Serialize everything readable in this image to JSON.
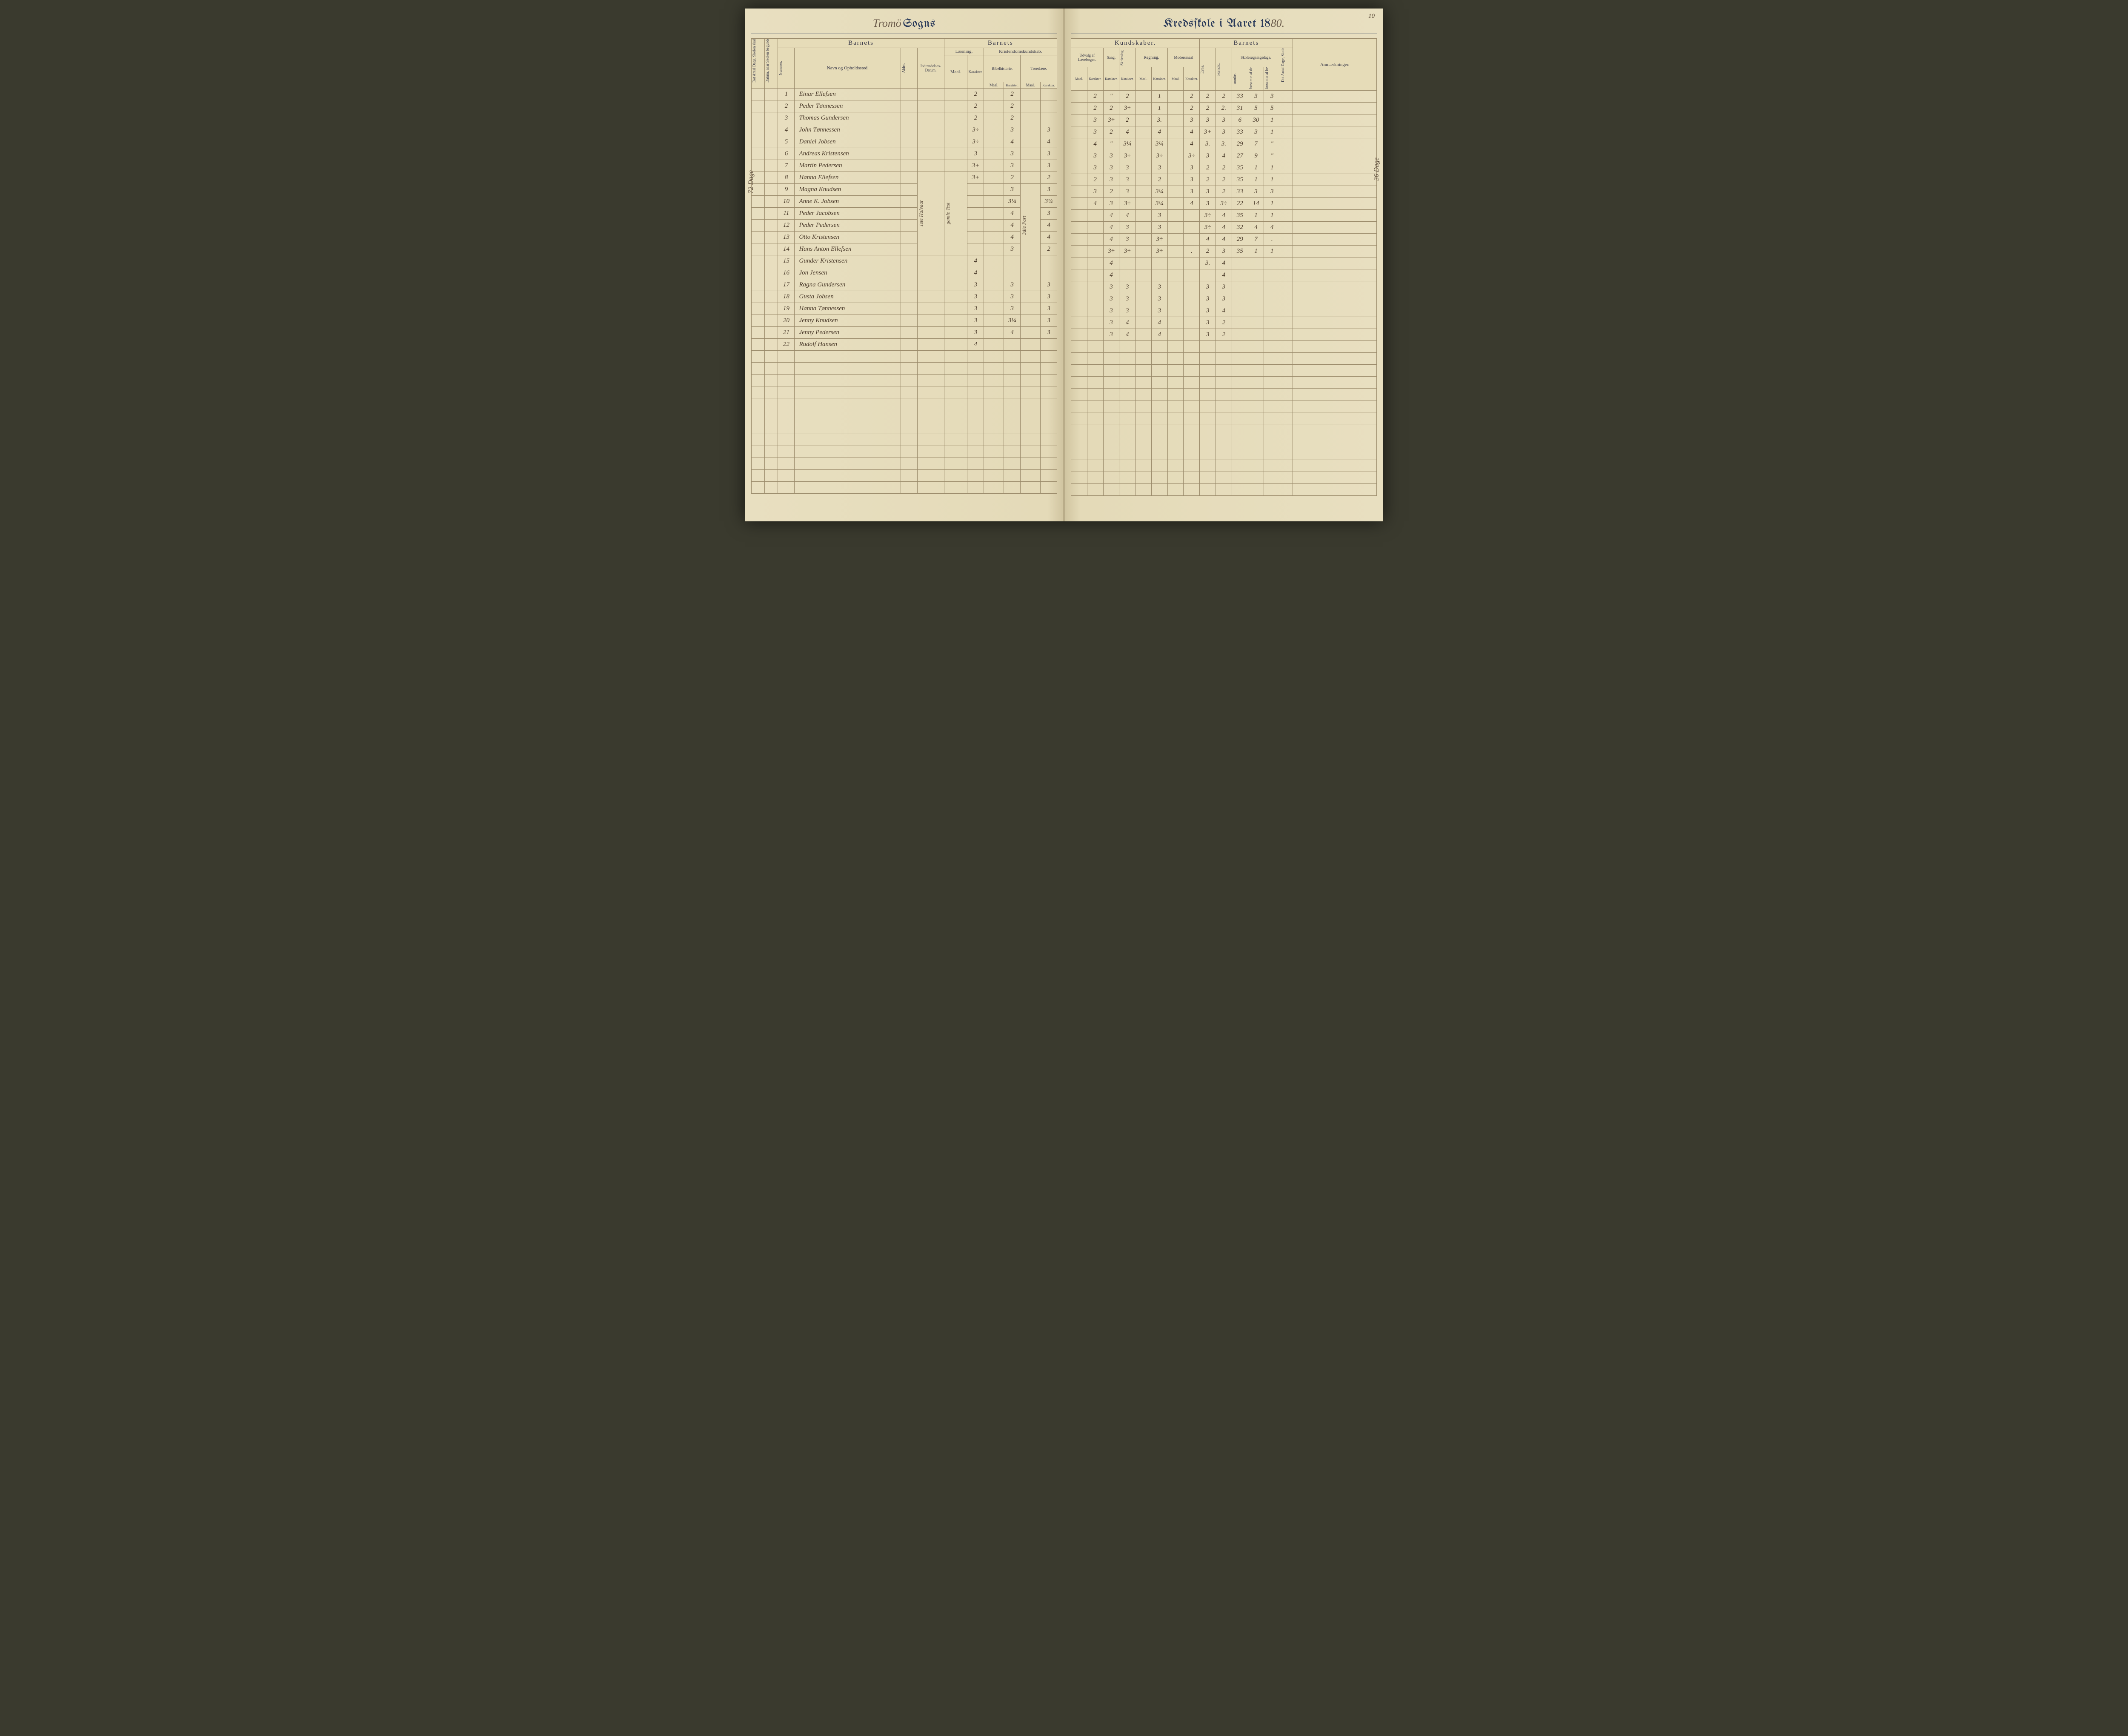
{
  "pageNumber": "10",
  "title": {
    "scriptLeft": "Tromö",
    "printLeft": "Sogns",
    "printRight": "Kredsſkole i Aaret 18",
    "scriptYear": "80."
  },
  "marginNoteLeft": "72 Dage",
  "marginNoteRight": "36 Dage",
  "columnNotes": {
    "indtraedelse": "1ste Halvaar",
    "laesningMaal": "gamle Test",
    "bibelMaal": "3die Part"
  },
  "headersLeft": {
    "rot1": "Det Antal Dage, Skolen skal holdes i Kredsen.",
    "rot2": "Datum, naar Skolen begynder og slutter hver Omgang.",
    "barnets": "Barnets",
    "barnets2": "Barnets",
    "nummer": "Nummer.",
    "navn": "Navn og Opholdssted.",
    "alder": "Alder.",
    "indtr": "Indtrædelses-Datum.",
    "laesning": "Læsning.",
    "kristendom": "Kristendomskundskab.",
    "maal": "Maal.",
    "karakter": "Karakter.",
    "bibel": "Bibelhistorie.",
    "troes": "Troeslære."
  },
  "headersRight": {
    "kundskaber": "Kundskaber.",
    "barnets": "Barnets",
    "udvalg": "Udvalg af Læsebogen.",
    "sang": "Sang.",
    "skriv": "Skrivning.",
    "regning": "Regning.",
    "modersmaal": "Modersmaal",
    "evne": "Evne.",
    "forhold": "Forhold.",
    "skolesogn": "Skolesøgningsdage.",
    "modt": "mødte.",
    "fors1": "forsømte af det Hele.",
    "fors2": "forsømte af lovl. Grund.",
    "rot1": "Det Antal Dage, Skolen i Virkeligheden er holdt.",
    "anm": "Anmærkninger.",
    "maal": "Maal.",
    "karakter": "Karakter."
  },
  "rows": [
    {
      "n": "1",
      "name": "Einar Ellefsen",
      "l_m": "",
      "l_k": "2",
      "b_k": "2",
      "t_k": "",
      "u_m": "",
      "u_k": "2",
      "sa": "\"",
      "sk": "2",
      "r_m": "",
      "r_k": "1",
      "m_m": "",
      "m_k": "2",
      "ev": "2",
      "fo": "2",
      "mo": "33",
      "f1": "3",
      "f2": "3"
    },
    {
      "n": "2",
      "name": "Peder Tønnessen",
      "l_k": "2",
      "b_k": "2",
      "u_k": "2",
      "sa": "2",
      "sk": "3÷",
      "r_k": "1",
      "m_k": "2",
      "ev": "2",
      "fo": "2.",
      "mo": "31",
      "f1": "5",
      "f2": "5"
    },
    {
      "n": "3",
      "name": "Thomas Gundersen",
      "l_k": "2",
      "b_k": "2",
      "u_k": "3",
      "sa": "3÷",
      "sk": "2",
      "r_k": "3.",
      "m_k": "3",
      "ev": "3",
      "fo": "3",
      "mo": "6",
      "f1": "30",
      "f2": "1"
    },
    {
      "n": "4",
      "name": "John Tønnessen",
      "l_k": "3÷",
      "b_k": "3",
      "t_k": "3",
      "u_k": "3",
      "sa": "2",
      "sk": "4",
      "r_k": "4",
      "m_k": "4",
      "ev": "3+",
      "fo": "3",
      "mo": "33",
      "f1": "3",
      "f2": "1"
    },
    {
      "n": "5",
      "name": "Daniel Jobsen",
      "l_k": "3÷",
      "b_k": "4",
      "t_k": "4",
      "u_k": "4",
      "sa": "\"",
      "sk": "3¼",
      "r_k": "3¼",
      "m_k": "4",
      "ev": "3.",
      "fo": "3.",
      "mo": "29",
      "f1": "7",
      "f2": "\""
    },
    {
      "n": "6",
      "name": "Andreas Kristensen",
      "l_k": "3",
      "b_k": "3",
      "t_k": "3",
      "u_k": "3",
      "sa": "3",
      "sk": "3÷",
      "r_k": "3÷",
      "m_k": "3÷",
      "ev": "3",
      "fo": "4",
      "mo": "27",
      "f1": "9",
      "f2": "\""
    },
    {
      "n": "7",
      "name": "Martin Pedersen",
      "l_k": "3+",
      "b_k": "3",
      "t_k": "3",
      "u_k": "3",
      "sa": "3",
      "sk": "3",
      "r_k": "3",
      "m_k": "3",
      "ev": "2",
      "fo": "2",
      "mo": "35",
      "f1": "1",
      "f2": "1"
    },
    {
      "n": "8",
      "name": "Hanna Ellefsen",
      "l_k": "3+",
      "b_k": "2",
      "t_k": "2",
      "u_k": "2",
      "sa": "3",
      "sk": "3",
      "r_k": "2",
      "m_k": "3",
      "ev": "2",
      "fo": "2",
      "mo": "35",
      "f1": "1",
      "f2": "1"
    },
    {
      "n": "9",
      "name": "Magna Knudsen",
      "l_k": "3+",
      "b_k": "3",
      "t_k": "3",
      "u_k": "3",
      "sa": "2",
      "sk": "3",
      "r_k": "3¼",
      "m_k": "3",
      "ev": "3",
      "fo": "2",
      "mo": "33",
      "f1": "3",
      "f2": "3"
    },
    {
      "n": "10",
      "name": "Anne K. Jobsen",
      "l_k": "3÷",
      "b_k": "3¼",
      "t_k": "3¼",
      "u_k": "4",
      "sa": "3",
      "sk": "3÷",
      "r_k": "3¼",
      "m_k": "4",
      "ev": "3",
      "fo": "3÷",
      "mo": "22",
      "f1": "14",
      "f2": "1"
    },
    {
      "n": "11",
      "name": "Peder Jacobsen",
      "l_k": "3¼",
      "b_k": "4",
      "t_k": "3",
      "u_k": "",
      "sa": "4",
      "sk": "4",
      "r_k": "3",
      "m_k": "",
      "ev": "3÷",
      "fo": "4",
      "mo": "35",
      "f1": "1",
      "f2": "1"
    },
    {
      "n": "12",
      "name": "Peder Pedersen",
      "l_k": "3¼",
      "b_k": "4",
      "t_k": "4",
      "u_k": "",
      "sa": "4",
      "sk": "3",
      "r_k": "3",
      "m_k": "",
      "ev": "3÷",
      "fo": "4",
      "mo": "32",
      "f1": "4",
      "f2": "4"
    },
    {
      "n": "13",
      "name": "Otto Kristensen",
      "l_k": "4",
      "b_k": "4",
      "t_k": "4",
      "u_k": "",
      "sa": "4",
      "sk": "3",
      "r_k": "3÷",
      "m_k": "",
      "ev": "4",
      "fo": "4",
      "mo": "29",
      "f1": "7",
      "f2": "."
    },
    {
      "n": "14",
      "name": "Hans Anton Ellefsen",
      "l_k": "3",
      "b_k": "3",
      "t_k": "2",
      "u_k": "",
      "sa": "3÷",
      "sk": "3÷",
      "r_k": "3÷",
      "m_k": ".",
      "ev": "2",
      "fo": "3",
      "mo": "35",
      "f1": "1",
      "f2": "1"
    },
    {
      "n": "15",
      "name": "Gunder Kristensen",
      "l_k": "4",
      "b_k": "",
      "t_k": "",
      "u_k": "",
      "sa": "4",
      "sk": "",
      "r_k": "",
      "m_k": "",
      "ev": "3.",
      "fo": "4",
      "mo": "",
      "f1": "",
      "f2": ""
    },
    {
      "n": "16",
      "name": "Jon Jensen",
      "l_k": "4",
      "b_k": "",
      "t_k": "",
      "u_k": "",
      "sa": "4",
      "sk": "",
      "r_k": "",
      "m_k": "",
      "ev": "",
      "fo": "4",
      "mo": "",
      "f1": "",
      "f2": ""
    },
    {
      "n": "17",
      "name": "Ragna Gundersen",
      "l_k": "3",
      "b_k": "3",
      "t_k": "3",
      "u_k": "",
      "sa": "3",
      "sk": "3",
      "r_k": "3",
      "m_k": "",
      "ev": "3",
      "fo": "3",
      "mo": "",
      "f1": "",
      "f2": ""
    },
    {
      "n": "18",
      "name": "Gusta Jobsen",
      "l_k": "3",
      "b_k": "3",
      "t_k": "3",
      "u_k": "",
      "sa": "3",
      "sk": "3",
      "r_k": "3",
      "m_k": "",
      "ev": "3",
      "fo": "3",
      "mo": "",
      "f1": "",
      "f2": ""
    },
    {
      "n": "19",
      "name": "Hanna Tønnessen",
      "l_k": "3",
      "b_k": "3",
      "t_k": "3",
      "u_k": "",
      "sa": "3",
      "sk": "3",
      "r_k": "3",
      "m_k": "",
      "ev": "3",
      "fo": "4",
      "mo": "",
      "f1": "",
      "f2": ""
    },
    {
      "n": "20",
      "name": "Jenny Knudsen",
      "l_k": "3",
      "b_k": "3¼",
      "t_k": "3",
      "u_k": "",
      "sa": "3",
      "sk": "4",
      "r_k": "4",
      "m_k": "",
      "ev": "3",
      "fo": "2",
      "mo": "",
      "f1": "",
      "f2": ""
    },
    {
      "n": "21",
      "name": "Jenny Pedersen",
      "l_k": "3",
      "b_k": "4",
      "t_k": "3",
      "u_k": "",
      "sa": "3",
      "sk": "4",
      "r_k": "4",
      "m_k": "",
      "ev": "3",
      "fo": "2",
      "mo": "",
      "f1": "",
      "f2": ""
    },
    {
      "n": "22",
      "name": "Rudolf Hansen",
      "l_k": "4",
      "b_k": "",
      "t_k": "",
      "u_k": "",
      "sa": "",
      "sk": "",
      "r_k": "",
      "m_k": "",
      "ev": "",
      "fo": "",
      "mo": "",
      "f1": "",
      "f2": ""
    }
  ],
  "blankRows": 12
}
